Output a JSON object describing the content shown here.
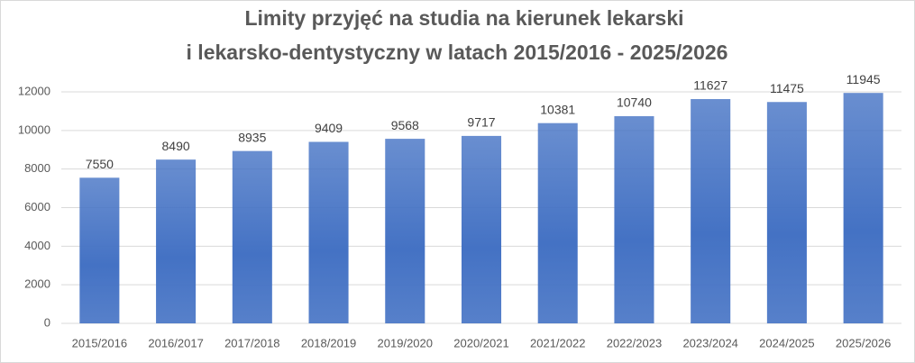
{
  "chart_data": {
    "type": "bar",
    "title": [
      "Limity przyjęć na studia na kierunek lekarski",
      "i lekarsko-dentystyczny w latach 2015/2016 - 2025/2026"
    ],
    "categories": [
      "2015/2016",
      "2016/2017",
      "2017/2018",
      "2018/2019",
      "2019/2020",
      "2020/2021",
      "2021/2022",
      "2022/2023",
      "2023/2024",
      "2024/2025",
      "2025/2026"
    ],
    "values": [
      7550,
      8490,
      8935,
      9409,
      9568,
      9717,
      10381,
      10740,
      11627,
      11475,
      11945
    ],
    "color": "#4472c4",
    "ylim": [
      0,
      12000
    ],
    "yticks": [
      0,
      2000,
      4000,
      6000,
      8000,
      10000,
      12000
    ],
    "grid": true
  }
}
